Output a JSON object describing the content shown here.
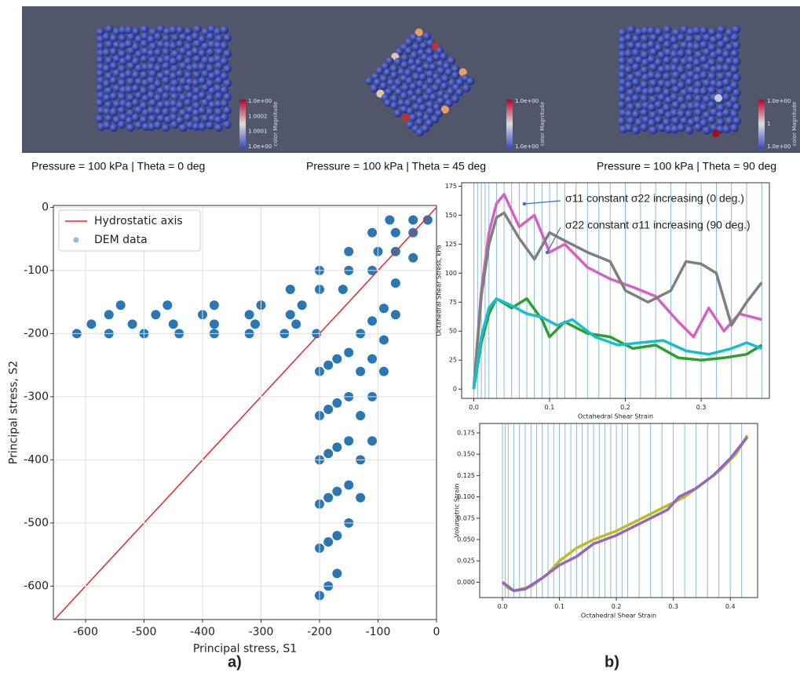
{
  "panels": [
    {
      "caption": "Pressure = 100 kPa | Theta = 0 deg",
      "colorbar_title": "color Magnitude",
      "colorbar_labels": [
        "1.0e+00",
        "1.0002",
        "1.0001",
        "1.0e+00"
      ]
    },
    {
      "caption": "Pressure = 100 kPa | Theta = 45 deg",
      "colorbar_title": "color Magnitude",
      "colorbar_labels": [
        "1.0e+00",
        "1.0e+00"
      ]
    },
    {
      "caption": "Pressure = 100 kPa | Theta = 90 deg",
      "colorbar_title": "color Magnitude",
      "colorbar_labels": [
        "1.0e+00",
        "1",
        "1.0e+00"
      ]
    }
  ],
  "figure_labels": [
    "a)",
    "b)"
  ],
  "chart_data": [
    {
      "type": "scatter",
      "xlabel": "Principal stress, S1",
      "ylabel": "Principal stress, S2",
      "xlim": [
        -655,
        0
      ],
      "ylim": [
        -653,
        3
      ],
      "xticks": [
        -600,
        -500,
        -400,
        -300,
        -200,
        -100,
        0
      ],
      "yticks": [
        0,
        -100,
        -200,
        -300,
        -400,
        -500,
        -600
      ],
      "grid": true,
      "legend": "upper left",
      "series": [
        {
          "name": "Hydrostatic axis",
          "mode": "line",
          "color": "#e8262a",
          "x": [
            -655,
            0
          ],
          "y": [
            -655,
            0
          ]
        },
        {
          "name": "DEM data",
          "mode": "markers",
          "color": "#2a77b4",
          "x": [
            -615,
            -560,
            -500,
            -440,
            -380,
            -320,
            -260,
            -205,
            -590,
            -520,
            -450,
            -380,
            -310,
            -240,
            -560,
            -480,
            -400,
            -320,
            -250,
            -540,
            -460,
            -380,
            -300,
            -230,
            -250,
            -200,
            -160,
            -200,
            -150,
            -110,
            -150,
            -100,
            -70,
            -110,
            -70,
            -40,
            -80,
            -40,
            -15,
            -200,
            -200,
            -200,
            -200,
            -200,
            -200,
            -185,
            -185,
            -185,
            -185,
            -185,
            -185,
            -170,
            -170,
            -170,
            -170,
            -170,
            -170,
            -150,
            -150,
            -150,
            -150,
            -150,
            -130,
            -130,
            -130,
            -130,
            -130,
            -110,
            -110,
            -110,
            -110,
            -90,
            -90,
            -90,
            -70,
            -70,
            -40
          ],
          "y": [
            -200,
            -200,
            -200,
            -200,
            -200,
            -200,
            -200,
            -200,
            -185,
            -185,
            -185,
            -185,
            -185,
            -185,
            -170,
            -170,
            -170,
            -170,
            -170,
            -155,
            -155,
            -155,
            -155,
            -155,
            -130,
            -130,
            -130,
            -100,
            -100,
            -100,
            -70,
            -70,
            -70,
            -40,
            -40,
            -40,
            -20,
            -20,
            -20,
            -260,
            -330,
            -400,
            -470,
            -540,
            -615,
            -250,
            -320,
            -390,
            -460,
            -530,
            -600,
            -240,
            -310,
            -380,
            -450,
            -520,
            -580,
            -230,
            -300,
            -370,
            -440,
            -500,
            -200,
            -260,
            -330,
            -400,
            -460,
            -180,
            -240,
            -300,
            -370,
            -160,
            -210,
            -260,
            -120,
            -170,
            -80
          ]
        }
      ]
    },
    {
      "type": "line",
      "xlabel": "Octahedral Shear Strain",
      "ylabel": "Octahedral Shear Stress, kPa",
      "xlim": [
        -0.016,
        0.39
      ],
      "ylim": [
        -8,
        178
      ],
      "xticks": [
        {
          "value": 0,
          "label": "0.0"
        },
        0.1,
        0.2,
        0.3
      ],
      "yticks": [
        0,
        25,
        50,
        75,
        100,
        125,
        150,
        175
      ],
      "grid": false,
      "vlines": [
        0,
        0.005,
        0.01,
        0.015,
        0.02,
        0.03,
        0.04,
        0.05,
        0.06,
        0.07,
        0.08,
        0.09,
        0.1,
        0.11,
        0.12,
        0.135,
        0.15,
        0.165,
        0.18,
        0.2,
        0.22,
        0.24,
        0.26,
        0.28,
        0.3,
        0.32,
        0.34,
        0.36,
        0.38
      ],
      "annotations": [
        "σ11 constant σ22 increasing (0 deg.)",
        "σ22 constant σ11 increasing (90 deg.)"
      ],
      "series": [
        {
          "color": "#d462c2",
          "x": [
            0,
            0.01,
            0.02,
            0.03,
            0.04,
            0.06,
            0.08,
            0.1,
            0.12,
            0.15,
            0.18,
            0.21,
            0.24,
            0.27,
            0.29,
            0.31,
            0.33,
            0.35,
            0.38
          ],
          "y": [
            0,
            85,
            135,
            160,
            168,
            140,
            150,
            118,
            125,
            105,
            95,
            88,
            80,
            58,
            45,
            70,
            50,
            65,
            60
          ]
        },
        {
          "color": "#7f7f7f",
          "x": [
            0,
            0.01,
            0.02,
            0.03,
            0.04,
            0.06,
            0.08,
            0.1,
            0.12,
            0.15,
            0.18,
            0.2,
            0.23,
            0.26,
            0.28,
            0.3,
            0.32,
            0.34,
            0.36,
            0.38
          ],
          "y": [
            0,
            80,
            125,
            148,
            152,
            130,
            112,
            135,
            128,
            118,
            110,
            85,
            75,
            85,
            110,
            108,
            100,
            55,
            75,
            92
          ]
        },
        {
          "color": "#2ca02c",
          "x": [
            0,
            0.01,
            0.02,
            0.03,
            0.05,
            0.07,
            0.09,
            0.1,
            0.12,
            0.15,
            0.18,
            0.21,
            0.24,
            0.27,
            0.3,
            0.33,
            0.36,
            0.38
          ],
          "y": [
            0,
            40,
            65,
            78,
            70,
            78,
            60,
            45,
            58,
            48,
            45,
            35,
            38,
            27,
            25,
            27,
            30,
            38
          ]
        },
        {
          "color": "#17becf",
          "x": [
            0,
            0.01,
            0.02,
            0.03,
            0.05,
            0.07,
            0.09,
            0.11,
            0.13,
            0.16,
            0.19,
            0.22,
            0.25,
            0.28,
            0.31,
            0.34,
            0.36,
            0.38
          ],
          "y": [
            0,
            45,
            70,
            78,
            72,
            65,
            62,
            55,
            60,
            45,
            38,
            40,
            42,
            33,
            30,
            35,
            40,
            35
          ]
        }
      ]
    },
    {
      "type": "line",
      "xlabel": "Octahedral Shear Strain",
      "ylabel": "Volumetric Strain",
      "xlim": [
        -0.04,
        0.448
      ],
      "ylim": [
        -0.018,
        0.186
      ],
      "xticks": [
        {
          "value": 0,
          "label": "0.0"
        },
        0.1,
        0.2,
        0.3,
        0.4
      ],
      "yticks": [
        {
          "value": 0,
          "label": "0.000"
        },
        0.025,
        {
          "value": 0.05,
          "label": "0.050"
        },
        0.075,
        {
          "value": 0.1,
          "label": "0.100"
        },
        0.125,
        {
          "value": 0.15,
          "label": "0.150"
        },
        0.175
      ],
      "grid": false,
      "vlines": [
        0,
        0.005,
        0.01,
        0.02,
        0.03,
        0.04,
        0.05,
        0.06,
        0.07,
        0.08,
        0.09,
        0.1,
        0.11,
        0.12,
        0.13,
        0.14,
        0.15,
        0.16,
        0.17,
        0.18,
        0.19,
        0.2,
        0.21,
        0.22,
        0.24,
        0.26,
        0.28,
        0.3,
        0.32,
        0.34,
        0.36,
        0.38,
        0.4,
        0.42
      ],
      "series": [
        {
          "color": "#bcbd22",
          "x": [
            0,
            0.01,
            0.02,
            0.05,
            0.08,
            0.1,
            0.13,
            0.16,
            0.2,
            0.23,
            0.26,
            0.29,
            0.32,
            0.35,
            0.38,
            0.41,
            0.43
          ],
          "y": [
            0,
            -0.007,
            -0.01,
            -0.005,
            0.01,
            0.025,
            0.04,
            0.05,
            0.06,
            0.07,
            0.08,
            0.09,
            0.1,
            0.115,
            0.13,
            0.15,
            0.172
          ]
        },
        {
          "color": "#9467bd",
          "x": [
            0,
            0.02,
            0.04,
            0.07,
            0.1,
            0.13,
            0.16,
            0.2,
            0.23,
            0.26,
            0.29,
            0.31,
            0.34,
            0.37,
            0.4,
            0.43
          ],
          "y": [
            0,
            -0.01,
            -0.008,
            0.005,
            0.02,
            0.03,
            0.045,
            0.055,
            0.065,
            0.075,
            0.085,
            0.1,
            0.11,
            0.125,
            0.145,
            0.17
          ]
        }
      ]
    }
  ]
}
